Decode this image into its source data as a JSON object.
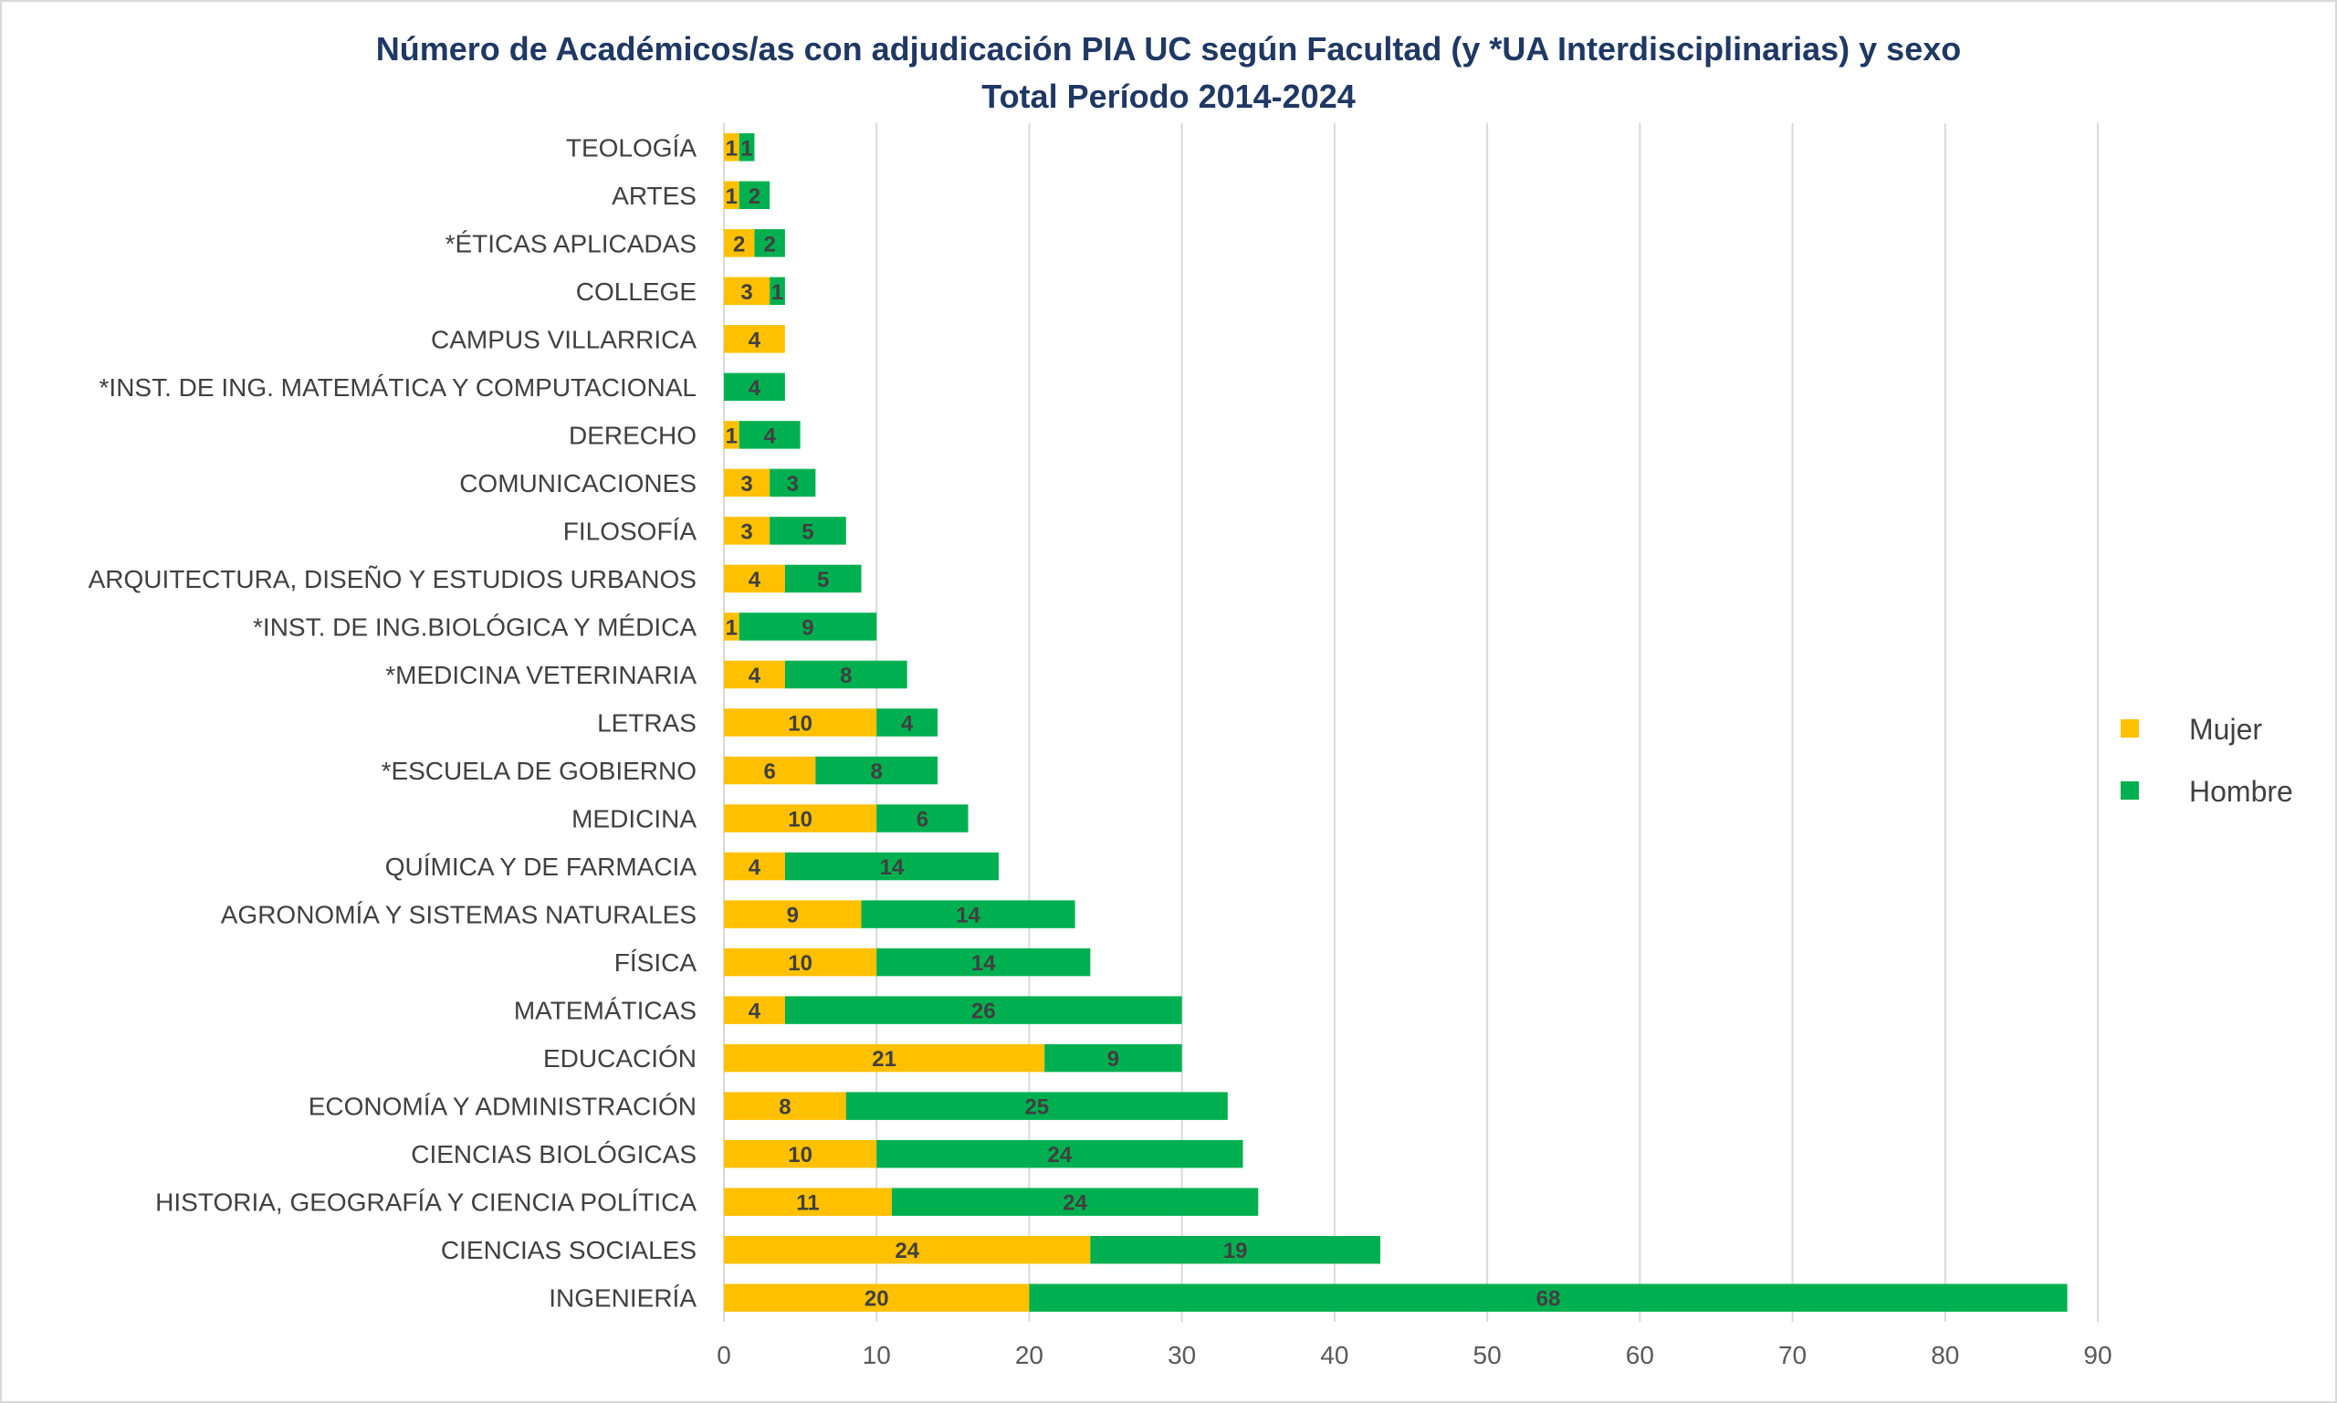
{
  "chart_data": {
    "type": "bar",
    "orientation": "horizontal",
    "stacked": true,
    "title": "Número de Académicos/as con adjudicación PIA UC según Facultad (y *UA Interdisciplinarias) y sexo",
    "subtitle": "Total Período 2014-2024",
    "xlabel": "",
    "ylabel": "",
    "xlim": [
      0,
      90
    ],
    "xticks": [
      "0",
      "10",
      "20",
      "30",
      "40",
      "50",
      "60",
      "70",
      "80",
      "90"
    ],
    "grid": true,
    "legend_position": "right",
    "categories": [
      "TEOLOGÍA",
      "ARTES",
      "*ÉTICAS APLICADAS",
      "COLLEGE",
      "CAMPUS VILLARRICA",
      "*INST. DE ING. MATEMÁTICA Y COMPUTACIONAL",
      "DERECHO",
      "COMUNICACIONES",
      "FILOSOFÍA",
      "ARQUITECTURA, DISEÑO Y ESTUDIOS URBANOS",
      "*INST. DE ING.BIOLÓGICA Y MÉDICA",
      "*MEDICINA VETERINARIA",
      "LETRAS",
      "*ESCUELA DE GOBIERNO",
      "MEDICINA",
      "QUÍMICA Y DE FARMACIA",
      "AGRONOMÍA Y SISTEMAS NATURALES",
      "FÍSICA",
      "MATEMÁTICAS",
      "EDUCACIÓN",
      "ECONOMÍA Y ADMINISTRACIÓN",
      "CIENCIAS BIOLÓGICAS",
      "HISTORIA, GEOGRAFÍA Y CIENCIA POLÍTICA",
      "CIENCIAS SOCIALES",
      "INGENIERÍA"
    ],
    "series": [
      {
        "name": "Mujer",
        "color": "#ffc000",
        "values": [
          1,
          1,
          2,
          3,
          4,
          0,
          1,
          3,
          3,
          4,
          1,
          4,
          10,
          6,
          10,
          4,
          9,
          10,
          4,
          21,
          8,
          10,
          11,
          24,
          20
        ]
      },
      {
        "name": "Hombre",
        "color": "#00b050",
        "values": [
          1,
          2,
          2,
          1,
          0,
          4,
          4,
          3,
          5,
          5,
          9,
          8,
          4,
          8,
          6,
          14,
          14,
          14,
          26,
          9,
          25,
          24,
          24,
          19,
          68
        ]
      }
    ]
  }
}
